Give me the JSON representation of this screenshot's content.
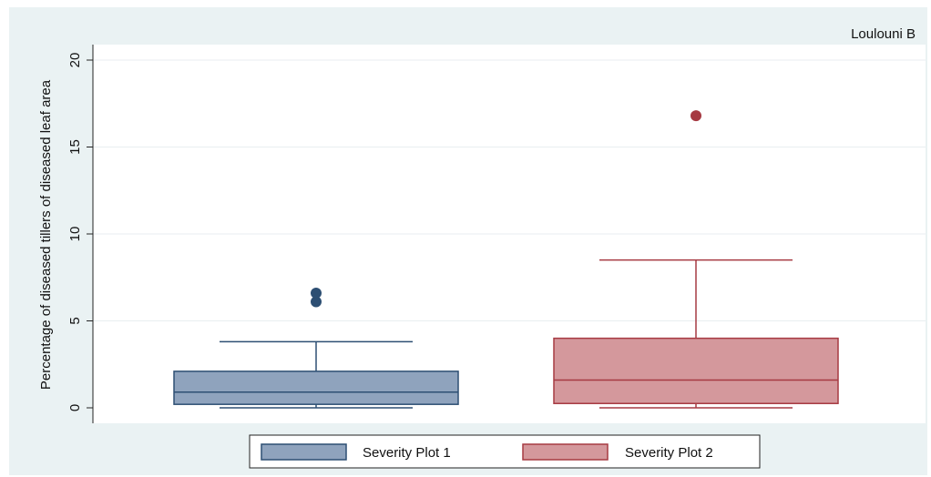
{
  "chart_data": {
    "type": "box",
    "subtitle": "Loulouni B",
    "ylabel": "Percentage of diseased tillers of diseased leaf area",
    "xlabel": "",
    "ylim": [
      -1,
      21
    ],
    "yticks": [
      0,
      5,
      10,
      15,
      20
    ],
    "grid": true,
    "legend_position": "bottom",
    "series": [
      {
        "name": "Severity Plot 1",
        "min": 0.0,
        "q1": 0.2,
        "median": 0.9,
        "q3": 2.1,
        "max": 3.8,
        "outliers": [
          6.1,
          6.6
        ],
        "color": "#8fa3bd",
        "edge_color": "#2d4f73"
      },
      {
        "name": "Severity Plot 2",
        "min": 0.0,
        "q1": 0.25,
        "median": 1.6,
        "q3": 4.0,
        "max": 8.5,
        "outliers": [
          16.8
        ],
        "color": "#d4989c",
        "edge_color": "#a63a42"
      }
    ]
  }
}
